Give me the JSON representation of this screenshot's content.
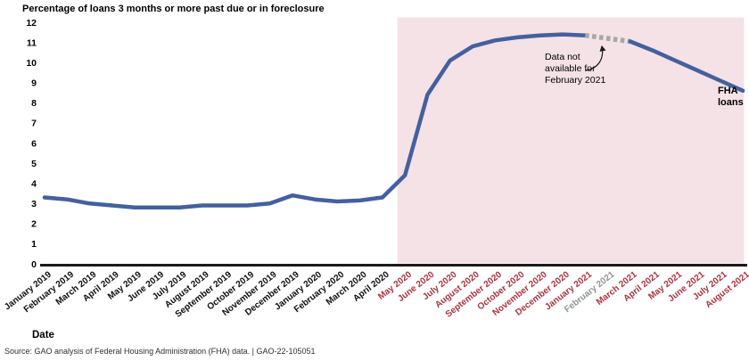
{
  "title": "Percentage of loans 3 months or more past due or in foreclosure",
  "x_axis_title": "Date",
  "source_note": "Source: GAO analysis of Federal Housing Administration (FHA) data.  |  GAO-22-105051",
  "annotation_text": "Data not\navailable for\nFebruary 2021",
  "series_label": "FHA\nloans",
  "colors": {
    "line": "#44609e",
    "dashed_gap": "#a5a8a6",
    "shaded_region": "#f5e2e6",
    "label_black": "#0f0f0f",
    "label_red": "#a93440",
    "label_gray": "#8f9494",
    "axis": "#1a1a1a"
  },
  "chart_data": {
    "type": "line",
    "title": "Percentage of loans 3 months or more past due or in foreclosure",
    "xlabel": "Date",
    "ylabel": "",
    "ylim": [
      0,
      12
    ],
    "yticks": [
      0,
      1,
      2,
      3,
      4,
      5,
      6,
      7,
      8,
      9,
      10,
      11,
      12
    ],
    "grid": false,
    "legend": "FHA loans",
    "legend_position": "right-of-line-end",
    "shaded_region_start": "May 2020",
    "missing_data_month": "February 2021",
    "missing_data_note": "Data not available for February 2021",
    "categories": [
      "January 2019",
      "February 2019",
      "March 2019",
      "April 2019",
      "May 2019",
      "June 2019",
      "July 2019",
      "August 2019",
      "September 2019",
      "October 2019",
      "November 2019",
      "December 2019",
      "January 2020",
      "February 2020",
      "March 2020",
      "April 2020",
      "May 2020",
      "June 2020",
      "July 2020",
      "August 2020",
      "September 2020",
      "October 2020",
      "November 2020",
      "December 2020",
      "January 2021",
      "February 2021",
      "March 2021",
      "April 2021",
      "May 2021",
      "June 2021",
      "July 2021",
      "August 2021"
    ],
    "values": [
      3.3,
      3.2,
      3.0,
      2.9,
      2.8,
      2.8,
      2.8,
      2.9,
      2.9,
      2.9,
      3.0,
      3.4,
      3.2,
      3.1,
      3.15,
      3.3,
      4.4,
      8.4,
      10.1,
      10.8,
      11.1,
      11.25,
      11.35,
      11.4,
      11.35,
      null,
      11.05,
      10.6,
      10.1,
      9.6,
      9.1,
      8.6
    ]
  }
}
